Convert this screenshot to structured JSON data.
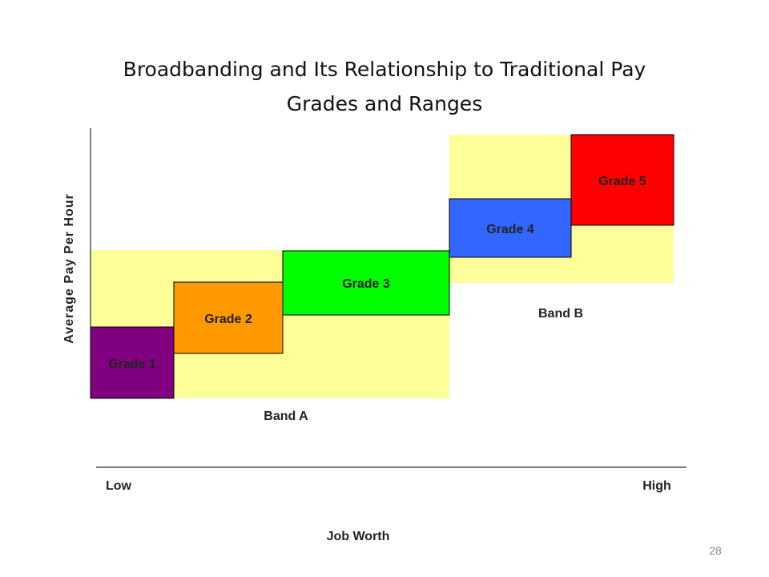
{
  "title_lines": [
    "Broadbanding and Its Relationship to Traditional Pay",
    "Grades and Ranges"
  ],
  "y_axis_label": "Average Pay Per Hour",
  "bands": [
    "Band A",
    "Band B"
  ],
  "grades": [
    "Grade 1",
    "Grade 2",
    "Grade 3",
    "Grade 4",
    "Grade 5"
  ],
  "x_axis": {
    "low": "Low",
    "high": "High",
    "label": "Job Worth"
  },
  "page_number": "28"
}
